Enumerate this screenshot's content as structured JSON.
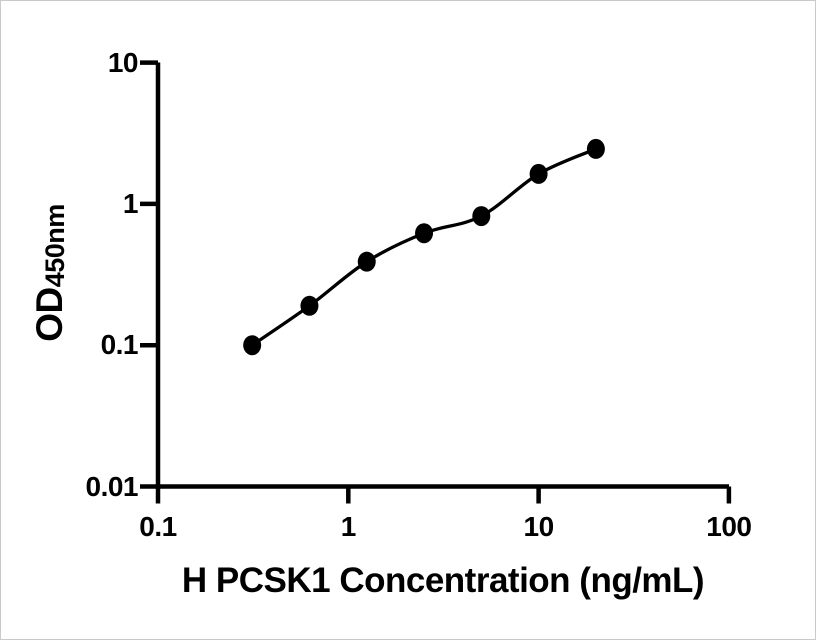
{
  "chart_data": {
    "type": "scatter",
    "xlabel": "H PCSK1 Concentration (ng/mL)",
    "ylabel": "OD450nm",
    "ylabel_main": "OD",
    "ylabel_sub": "450nm",
    "x_scale": "log10",
    "y_scale": "log10",
    "xlim": [
      0.1,
      100
    ],
    "ylim": [
      0.01,
      10
    ],
    "x_ticks": [
      {
        "value": 0.1,
        "label": "0.1"
      },
      {
        "value": 1,
        "label": "1"
      },
      {
        "value": 10,
        "label": "10"
      },
      {
        "value": 100,
        "label": "100"
      }
    ],
    "y_ticks": [
      {
        "value": 0.01,
        "label": "0.01"
      },
      {
        "value": 0.1,
        "label": "0.1"
      },
      {
        "value": 1,
        "label": "1"
      },
      {
        "value": 10,
        "label": "10"
      }
    ],
    "series": [
      {
        "x": [
          0.3125,
          0.625,
          1.25,
          2.5,
          5,
          10,
          20
        ],
        "y": [
          0.1,
          0.19,
          0.39,
          0.62,
          0.82,
          1.63,
          2.45
        ],
        "marker": "filled-circle",
        "fit_line": true
      }
    ],
    "grid": false,
    "legend": "none",
    "marker_color": "#000000",
    "line_color": "#000000",
    "axis_color": "#000000",
    "background_color": "#ffffff"
  }
}
